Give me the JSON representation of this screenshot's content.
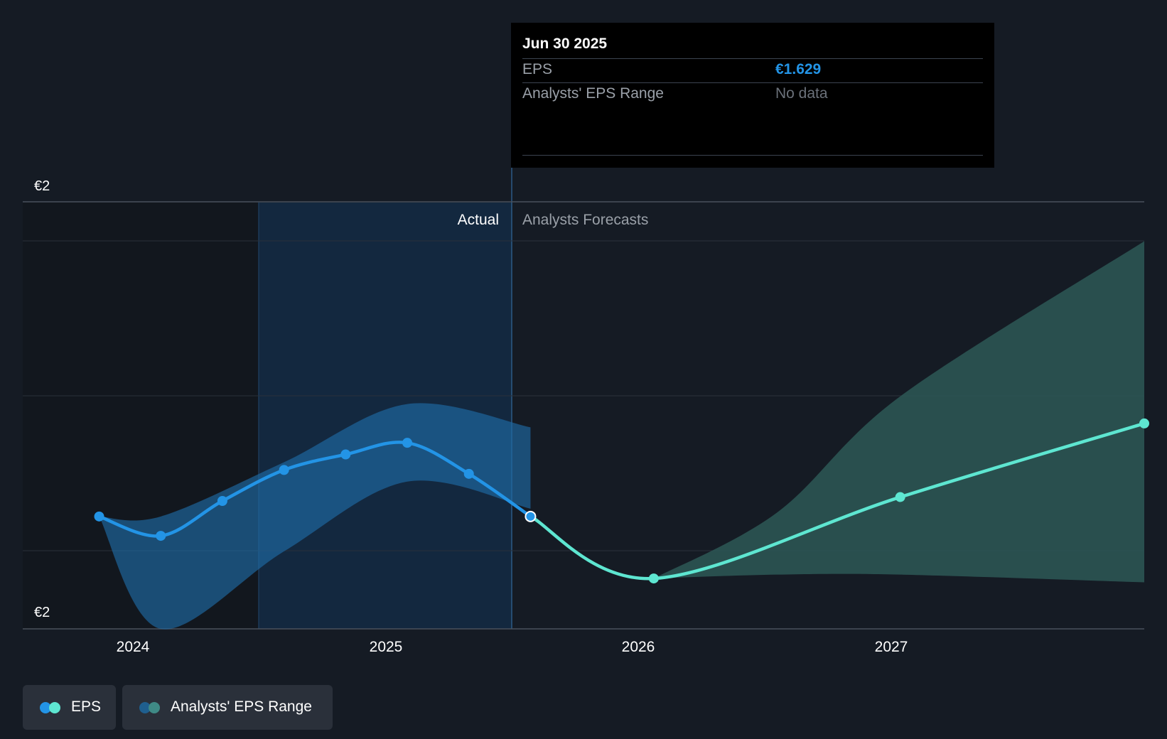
{
  "tooltip": {
    "date": "Jun 30 2025",
    "eps_label": "EPS",
    "eps_value": "€1.629",
    "range_label": "Analysts' EPS Range",
    "range_value": "No data"
  },
  "regions": {
    "actual_label": "Actual",
    "forecast_label": "Analysts Forecasts"
  },
  "legend": {
    "eps_label": "EPS",
    "range_label": "Analysts' EPS Range"
  },
  "colors": {
    "background": "#151b24",
    "eps_actual": "#2394e6",
    "eps_forecast": "#5ee6d1",
    "range_actual": "#1f6aa5",
    "range_forecast": "#2d5856",
    "tooltip_value": "#2394e6"
  },
  "chart_data": {
    "type": "line",
    "y_tick_labels": [
      "€2",
      "€2"
    ],
    "x_tick_labels": [
      "2024",
      "2025",
      "2026",
      "2027"
    ],
    "ylim": [
      1.6,
      1.71
    ],
    "xlim": [
      2023.44,
      2027.99
    ],
    "series": [
      {
        "name": "EPS",
        "x": [
          2023.75,
          2024.0,
          2024.25,
          2024.5,
          2024.75,
          2025.0,
          2025.25,
          2025.5
        ],
        "values": [
          1.629,
          1.624,
          1.633,
          1.641,
          1.645,
          1.648,
          1.64,
          1.629
        ]
      },
      {
        "name": "EPS",
        "x": [
          2025.5,
          2026.0,
          2027.0,
          2027.99
        ],
        "values": [
          1.629,
          1.613,
          1.634,
          1.653
        ]
      },
      {
        "name": "Analysts' EPS Range",
        "x": [
          2023.75,
          2024.0,
          2024.5,
          2025.0,
          2025.5
        ],
        "upper": [
          1.629,
          1.629,
          1.643,
          1.658,
          1.652
        ],
        "lower": [
          1.629,
          1.6,
          1.62,
          1.638,
          1.631
        ]
      },
      {
        "name": "Analysts' EPS Range",
        "x": [
          2026.0,
          2026.5,
          2027.0,
          2027.99
        ],
        "upper": [
          1.613,
          1.63,
          1.66,
          1.7
        ],
        "lower": [
          1.613,
          1.614,
          1.614,
          1.612
        ]
      }
    ]
  }
}
